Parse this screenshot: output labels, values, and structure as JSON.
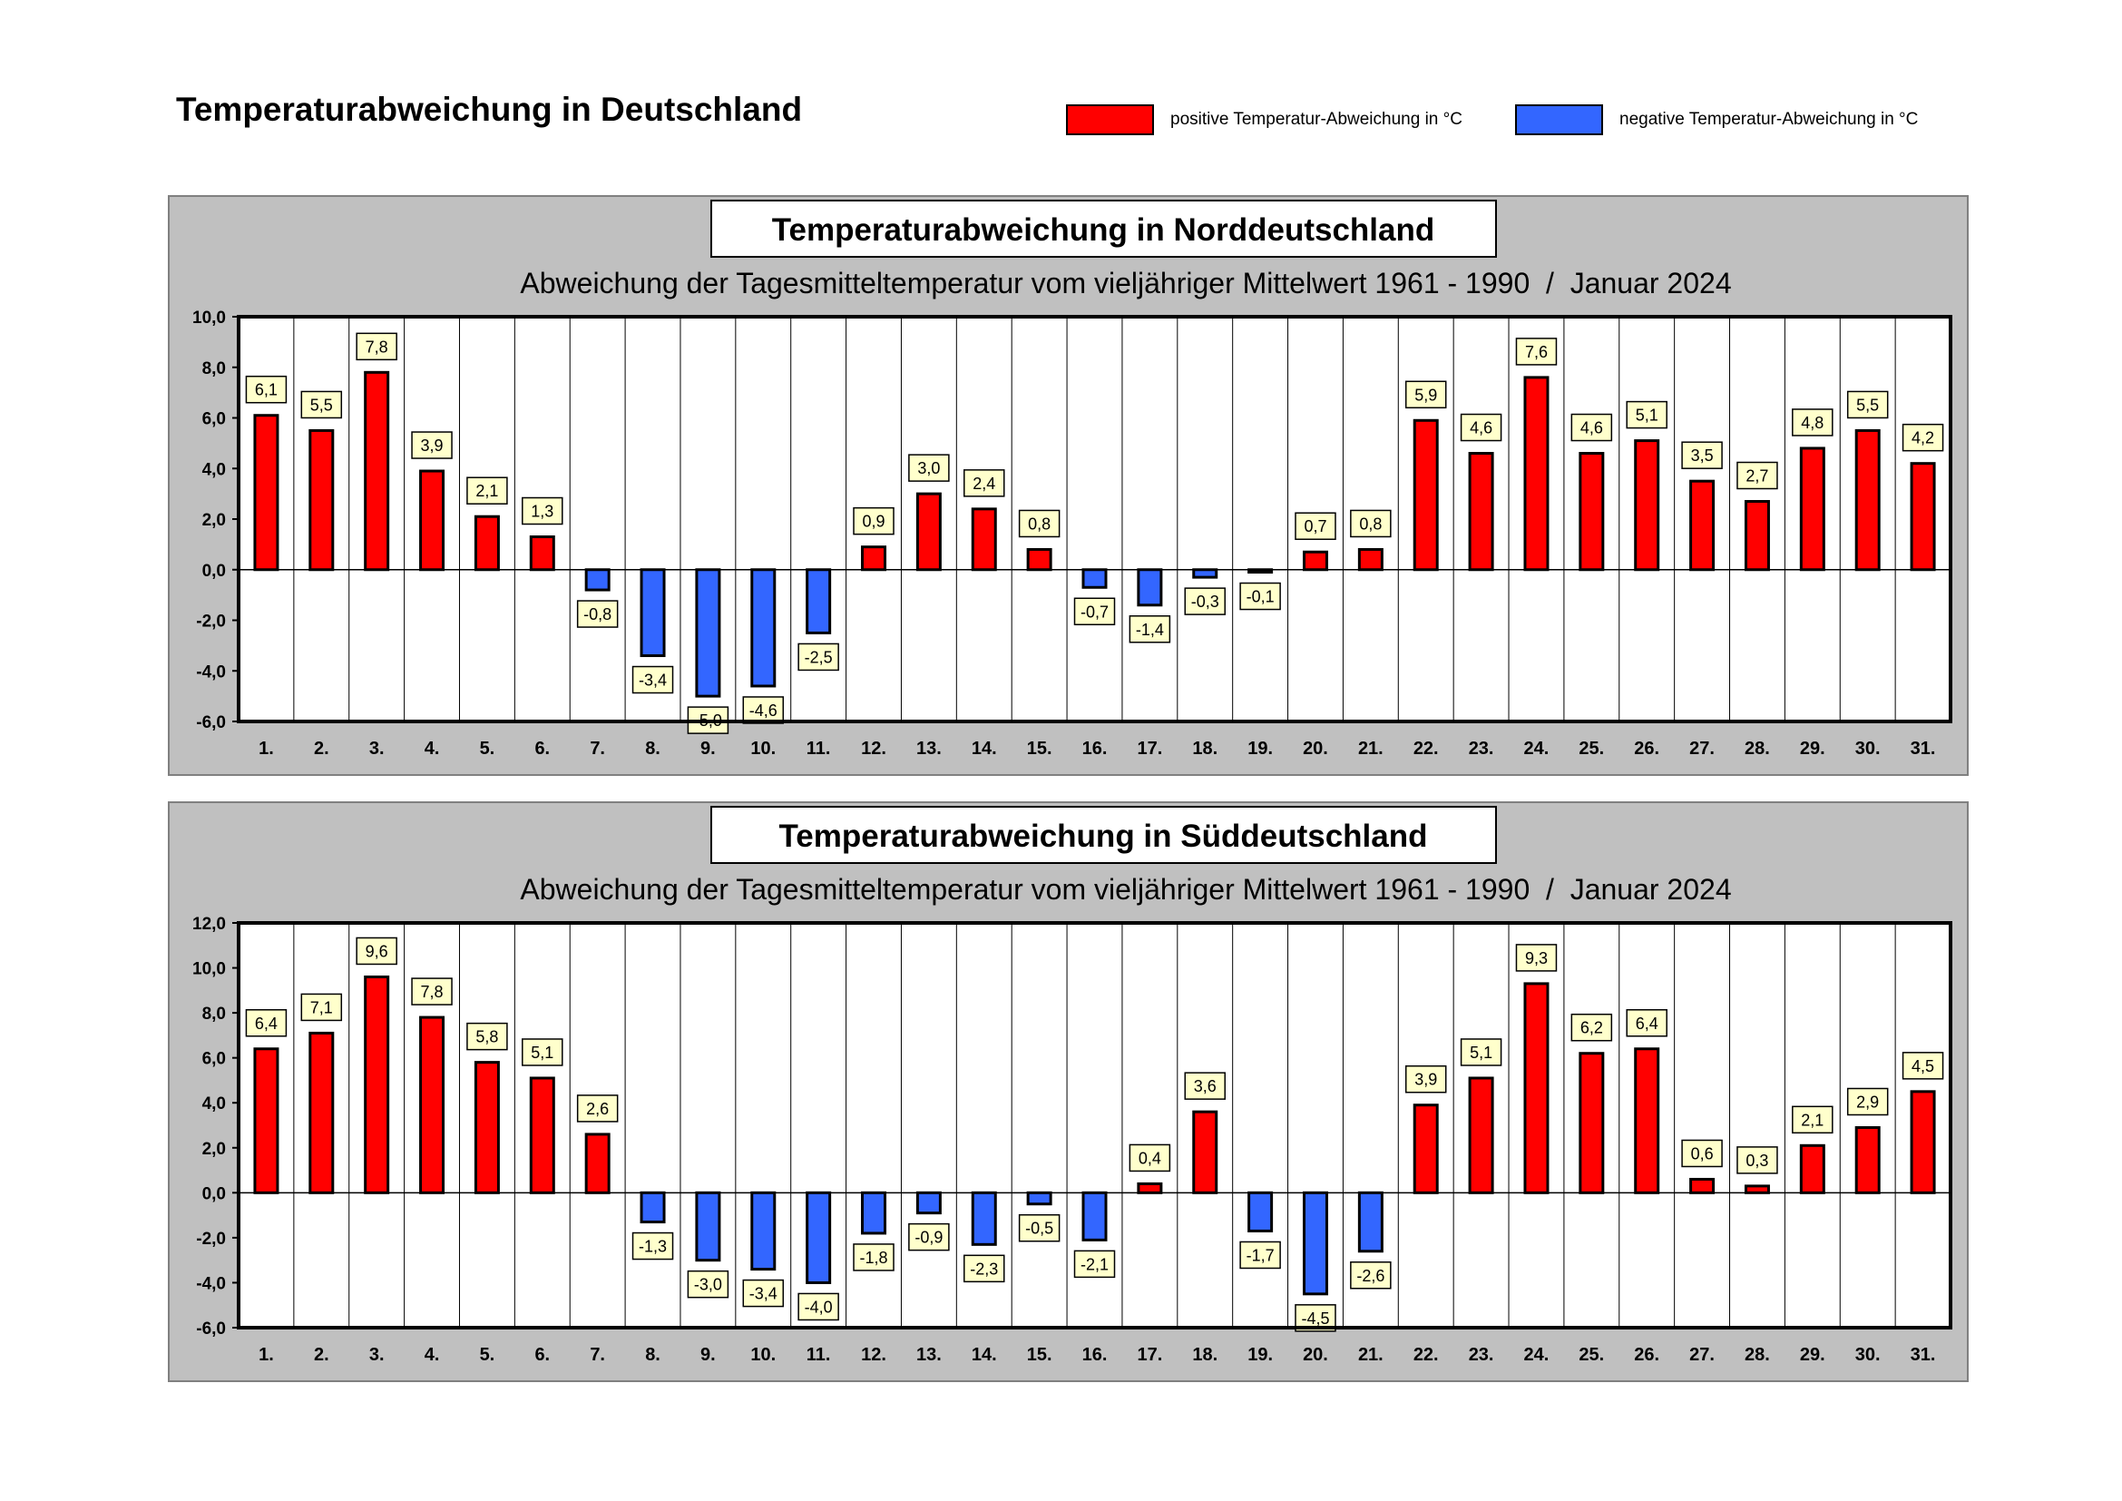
{
  "page_title": "Temperaturabweichung in Deutschland",
  "legend": [
    {
      "label": "positive Temperatur-Abweichung in °C",
      "color": "#ff0000"
    },
    {
      "label": "negative Temperatur-Abweichung in °C",
      "color": "#3366ff"
    }
  ],
  "chart_data": [
    {
      "type": "bar",
      "title": "Temperaturabweichung in Norddeutschland",
      "subtitle": "Abweichung der Tagesmitteltemperatur vom vieljähriger Mittelwert 1961 - 1990  /  Januar 2024",
      "xlabel": "",
      "ylabel": "",
      "categories": [
        "1.",
        "2.",
        "3.",
        "4.",
        "5.",
        "6.",
        "7.",
        "8.",
        "9.",
        "10.",
        "11.",
        "12.",
        "13.",
        "14.",
        "15.",
        "16.",
        "17.",
        "18.",
        "19.",
        "20.",
        "21.",
        "22.",
        "23.",
        "24.",
        "25.",
        "26.",
        "27.",
        "28.",
        "29.",
        "30.",
        "31."
      ],
      "values": [
        6.1,
        5.5,
        7.8,
        3.9,
        2.1,
        1.3,
        -0.8,
        -3.4,
        -5.0,
        -4.6,
        -2.5,
        0.9,
        3.0,
        2.4,
        0.8,
        -0.7,
        -1.4,
        -0.3,
        -0.1,
        0.7,
        0.8,
        5.9,
        4.6,
        7.6,
        4.6,
        5.1,
        3.5,
        2.7,
        4.8,
        5.5,
        4.2
      ],
      "value_labels": [
        "6,1",
        "5,5",
        "7,8",
        "3,9",
        "2,1",
        "1,3",
        "-0,8",
        "-3,4",
        "-5,0",
        "-4,6",
        "-2,5",
        "0,9",
        "3,0",
        "2,4",
        "0,8",
        "-0,7",
        "-1,4",
        "-0,3",
        "-0,1",
        "0,7",
        "0,8",
        "5,9",
        "4,6",
        "7,6",
        "4,6",
        "5,1",
        "3,5",
        "2,7",
        "4,8",
        "5,5",
        "4,2"
      ],
      "ylim": [
        -6,
        10
      ],
      "yticks": [
        10,
        8,
        6,
        4,
        2,
        0,
        -2,
        -4,
        -6
      ],
      "ytick_labels": [
        "10,0",
        "8,0",
        "6,0",
        "4,0",
        "2,0",
        "0,0",
        "-2,0",
        "-4,0",
        "-6,0"
      ],
      "grid": "vertical",
      "positive_color": "#ff0000",
      "negative_color": "#3366ff"
    },
    {
      "type": "bar",
      "title": "Temperaturabweichung in Süddeutschland",
      "subtitle": "Abweichung der Tagesmitteltemperatur vom vieljähriger Mittelwert 1961 - 1990  /  Januar 2024",
      "xlabel": "",
      "ylabel": "",
      "categories": [
        "1.",
        "2.",
        "3.",
        "4.",
        "5.",
        "6.",
        "7.",
        "8.",
        "9.",
        "10.",
        "11.",
        "12.",
        "13.",
        "14.",
        "15.",
        "16.",
        "17.",
        "18.",
        "19.",
        "20.",
        "21.",
        "22.",
        "23.",
        "24.",
        "25.",
        "26.",
        "27.",
        "28.",
        "29.",
        "30.",
        "31."
      ],
      "values": [
        6.4,
        7.1,
        9.6,
        7.8,
        5.8,
        5.1,
        2.6,
        -1.3,
        -3.0,
        -3.4,
        -4.0,
        -1.8,
        -0.9,
        -2.3,
        -0.5,
        -2.1,
        0.4,
        3.6,
        -1.7,
        -4.5,
        -2.6,
        3.9,
        5.1,
        9.3,
        6.2,
        6.4,
        0.6,
        0.3,
        2.1,
        2.9,
        4.5
      ],
      "value_labels": [
        "6,4",
        "7,1",
        "9,6",
        "7,8",
        "5,8",
        "5,1",
        "2,6",
        "-1,3",
        "-3,0",
        "-3,4",
        "-4,0",
        "-1,8",
        "-0,9",
        "-2,3",
        "-0,5",
        "-2,1",
        "0,4",
        "3,6",
        "-1,7",
        "-4,5",
        "-2,6",
        "3,9",
        "5,1",
        "9,3",
        "6,2",
        "6,4",
        "0,6",
        "0,3",
        "2,1",
        "2,9",
        "4,5"
      ],
      "ylim": [
        -6,
        12
      ],
      "yticks": [
        12,
        10,
        8,
        6,
        4,
        2,
        0,
        -2,
        -4,
        -6
      ],
      "ytick_labels": [
        "12,0",
        "10,0",
        "8,0",
        "6,0",
        "4,0",
        "2,0",
        "0,0",
        "-2,0",
        "-4,0",
        "-6,0"
      ],
      "grid": "vertical",
      "positive_color": "#ff0000",
      "negative_color": "#3366ff"
    }
  ]
}
